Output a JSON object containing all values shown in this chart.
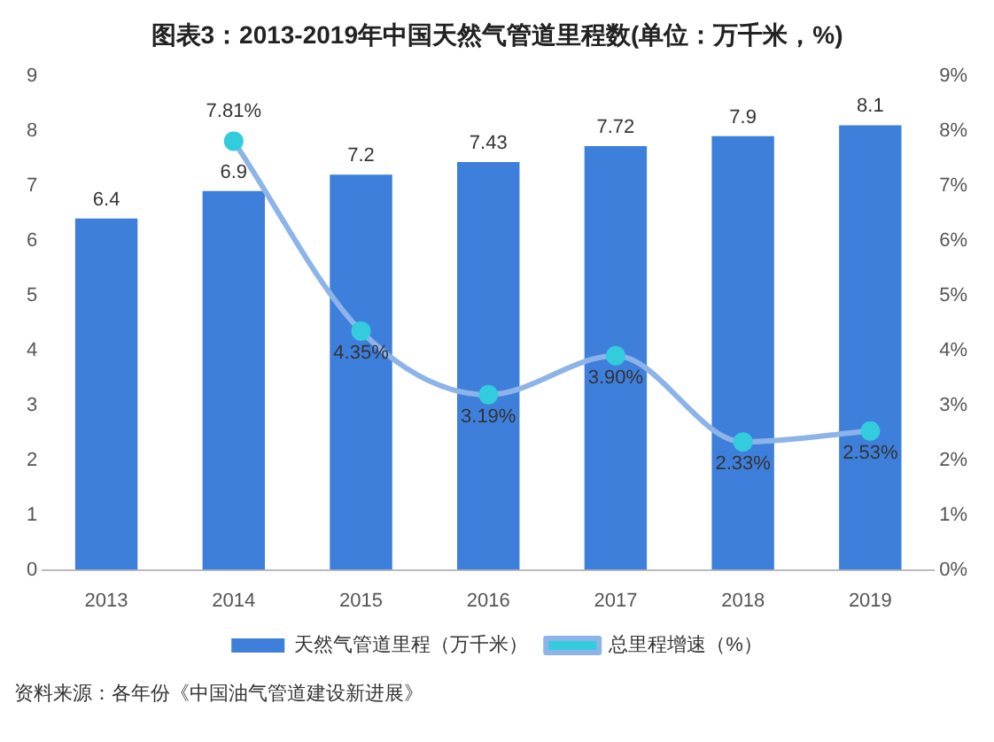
{
  "chart_data": {
    "type": "bar",
    "title": "图表3：2013-2019年中国天然气管道里程数(单位：万千米，%)",
    "categories": [
      "2013",
      "2014",
      "2015",
      "2016",
      "2017",
      "2018",
      "2019"
    ],
    "series": [
      {
        "name": "天然气管道里程（万千米）",
        "color": "#3f7fdc",
        "values": [
          6.4,
          6.9,
          7.2,
          7.43,
          7.72,
          7.9,
          8.1
        ],
        "value_labels": [
          "6.4",
          "6.9",
          "7.2",
          "7.43",
          "7.72",
          "7.9",
          "8.1"
        ]
      },
      {
        "name": "总里程增速（%）",
        "type": "line",
        "axis": "y2",
        "color": "#8db4e8",
        "values": [
          null,
          7.81,
          4.35,
          3.19,
          3.9,
          2.33,
          2.53
        ],
        "value_labels": [
          null,
          "7.81%",
          "4.35%",
          "3.19%",
          "3.90%",
          "2.33%",
          "2.53%"
        ]
      }
    ],
    "ylim": [
      0,
      9
    ],
    "yticks": [
      0,
      1,
      2,
      3,
      4,
      5,
      6,
      7,
      8,
      9
    ],
    "y2lim": [
      0,
      9
    ],
    "y2ticks": [
      {
        "value": 0,
        "label": "0%"
      },
      {
        "value": 1,
        "label": "1%"
      },
      {
        "value": 2,
        "label": "2%"
      },
      {
        "value": 3,
        "label": "3%"
      },
      {
        "value": 4,
        "label": "4%"
      },
      {
        "value": 5,
        "label": "5%"
      },
      {
        "value": 6,
        "label": "6%"
      },
      {
        "value": 7,
        "label": "7%"
      },
      {
        "value": 8,
        "label": "8%"
      },
      {
        "value": 9,
        "label": "9%"
      }
    ],
    "grid": false,
    "legend": "bottom",
    "marker": "circle",
    "line_style": "solid",
    "annotations": [
      "资料来源：各年份《中国油气管道建设新进展》"
    ]
  }
}
